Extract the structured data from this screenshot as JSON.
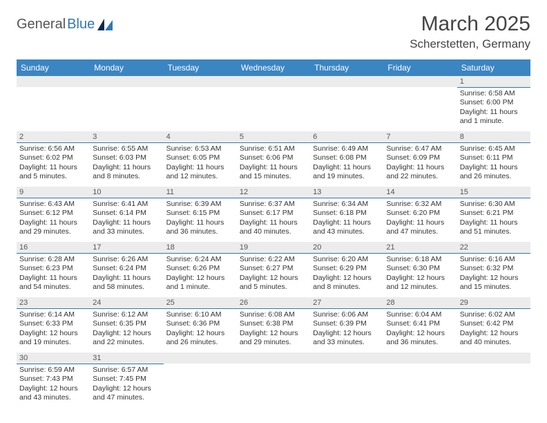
{
  "logo": {
    "text1": "General",
    "text2": "Blue"
  },
  "title": "March 2025",
  "location": "Scherstetten, Germany",
  "colors": {
    "header_bg": "#3b85c3",
    "header_text": "#ffffff",
    "daynum_bg": "#ececec",
    "border": "#2f78b7",
    "body_text": "#333333",
    "logo_gray": "#555555",
    "logo_blue": "#2f78b7"
  },
  "weekdays": [
    "Sunday",
    "Monday",
    "Tuesday",
    "Wednesday",
    "Thursday",
    "Friday",
    "Saturday"
  ],
  "weeks": [
    [
      {
        "day": "",
        "sunrise": "",
        "sunset": "",
        "daylight": ""
      },
      {
        "day": "",
        "sunrise": "",
        "sunset": "",
        "daylight": ""
      },
      {
        "day": "",
        "sunrise": "",
        "sunset": "",
        "daylight": ""
      },
      {
        "day": "",
        "sunrise": "",
        "sunset": "",
        "daylight": ""
      },
      {
        "day": "",
        "sunrise": "",
        "sunset": "",
        "daylight": ""
      },
      {
        "day": "",
        "sunrise": "",
        "sunset": "",
        "daylight": ""
      },
      {
        "day": "1",
        "sunrise": "Sunrise: 6:58 AM",
        "sunset": "Sunset: 6:00 PM",
        "daylight": "Daylight: 11 hours and 1 minute."
      }
    ],
    [
      {
        "day": "2",
        "sunrise": "Sunrise: 6:56 AM",
        "sunset": "Sunset: 6:02 PM",
        "daylight": "Daylight: 11 hours and 5 minutes."
      },
      {
        "day": "3",
        "sunrise": "Sunrise: 6:55 AM",
        "sunset": "Sunset: 6:03 PM",
        "daylight": "Daylight: 11 hours and 8 minutes."
      },
      {
        "day": "4",
        "sunrise": "Sunrise: 6:53 AM",
        "sunset": "Sunset: 6:05 PM",
        "daylight": "Daylight: 11 hours and 12 minutes."
      },
      {
        "day": "5",
        "sunrise": "Sunrise: 6:51 AM",
        "sunset": "Sunset: 6:06 PM",
        "daylight": "Daylight: 11 hours and 15 minutes."
      },
      {
        "day": "6",
        "sunrise": "Sunrise: 6:49 AM",
        "sunset": "Sunset: 6:08 PM",
        "daylight": "Daylight: 11 hours and 19 minutes."
      },
      {
        "day": "7",
        "sunrise": "Sunrise: 6:47 AM",
        "sunset": "Sunset: 6:09 PM",
        "daylight": "Daylight: 11 hours and 22 minutes."
      },
      {
        "day": "8",
        "sunrise": "Sunrise: 6:45 AM",
        "sunset": "Sunset: 6:11 PM",
        "daylight": "Daylight: 11 hours and 26 minutes."
      }
    ],
    [
      {
        "day": "9",
        "sunrise": "Sunrise: 6:43 AM",
        "sunset": "Sunset: 6:12 PM",
        "daylight": "Daylight: 11 hours and 29 minutes."
      },
      {
        "day": "10",
        "sunrise": "Sunrise: 6:41 AM",
        "sunset": "Sunset: 6:14 PM",
        "daylight": "Daylight: 11 hours and 33 minutes."
      },
      {
        "day": "11",
        "sunrise": "Sunrise: 6:39 AM",
        "sunset": "Sunset: 6:15 PM",
        "daylight": "Daylight: 11 hours and 36 minutes."
      },
      {
        "day": "12",
        "sunrise": "Sunrise: 6:37 AM",
        "sunset": "Sunset: 6:17 PM",
        "daylight": "Daylight: 11 hours and 40 minutes."
      },
      {
        "day": "13",
        "sunrise": "Sunrise: 6:34 AM",
        "sunset": "Sunset: 6:18 PM",
        "daylight": "Daylight: 11 hours and 43 minutes."
      },
      {
        "day": "14",
        "sunrise": "Sunrise: 6:32 AM",
        "sunset": "Sunset: 6:20 PM",
        "daylight": "Daylight: 11 hours and 47 minutes."
      },
      {
        "day": "15",
        "sunrise": "Sunrise: 6:30 AM",
        "sunset": "Sunset: 6:21 PM",
        "daylight": "Daylight: 11 hours and 51 minutes."
      }
    ],
    [
      {
        "day": "16",
        "sunrise": "Sunrise: 6:28 AM",
        "sunset": "Sunset: 6:23 PM",
        "daylight": "Daylight: 11 hours and 54 minutes."
      },
      {
        "day": "17",
        "sunrise": "Sunrise: 6:26 AM",
        "sunset": "Sunset: 6:24 PM",
        "daylight": "Daylight: 11 hours and 58 minutes."
      },
      {
        "day": "18",
        "sunrise": "Sunrise: 6:24 AM",
        "sunset": "Sunset: 6:26 PM",
        "daylight": "Daylight: 12 hours and 1 minute."
      },
      {
        "day": "19",
        "sunrise": "Sunrise: 6:22 AM",
        "sunset": "Sunset: 6:27 PM",
        "daylight": "Daylight: 12 hours and 5 minutes."
      },
      {
        "day": "20",
        "sunrise": "Sunrise: 6:20 AM",
        "sunset": "Sunset: 6:29 PM",
        "daylight": "Daylight: 12 hours and 8 minutes."
      },
      {
        "day": "21",
        "sunrise": "Sunrise: 6:18 AM",
        "sunset": "Sunset: 6:30 PM",
        "daylight": "Daylight: 12 hours and 12 minutes."
      },
      {
        "day": "22",
        "sunrise": "Sunrise: 6:16 AM",
        "sunset": "Sunset: 6:32 PM",
        "daylight": "Daylight: 12 hours and 15 minutes."
      }
    ],
    [
      {
        "day": "23",
        "sunrise": "Sunrise: 6:14 AM",
        "sunset": "Sunset: 6:33 PM",
        "daylight": "Daylight: 12 hours and 19 minutes."
      },
      {
        "day": "24",
        "sunrise": "Sunrise: 6:12 AM",
        "sunset": "Sunset: 6:35 PM",
        "daylight": "Daylight: 12 hours and 22 minutes."
      },
      {
        "day": "25",
        "sunrise": "Sunrise: 6:10 AM",
        "sunset": "Sunset: 6:36 PM",
        "daylight": "Daylight: 12 hours and 26 minutes."
      },
      {
        "day": "26",
        "sunrise": "Sunrise: 6:08 AM",
        "sunset": "Sunset: 6:38 PM",
        "daylight": "Daylight: 12 hours and 29 minutes."
      },
      {
        "day": "27",
        "sunrise": "Sunrise: 6:06 AM",
        "sunset": "Sunset: 6:39 PM",
        "daylight": "Daylight: 12 hours and 33 minutes."
      },
      {
        "day": "28",
        "sunrise": "Sunrise: 6:04 AM",
        "sunset": "Sunset: 6:41 PM",
        "daylight": "Daylight: 12 hours and 36 minutes."
      },
      {
        "day": "29",
        "sunrise": "Sunrise: 6:02 AM",
        "sunset": "Sunset: 6:42 PM",
        "daylight": "Daylight: 12 hours and 40 minutes."
      }
    ],
    [
      {
        "day": "30",
        "sunrise": "Sunrise: 6:59 AM",
        "sunset": "Sunset: 7:43 PM",
        "daylight": "Daylight: 12 hours and 43 minutes."
      },
      {
        "day": "31",
        "sunrise": "Sunrise: 6:57 AM",
        "sunset": "Sunset: 7:45 PM",
        "daylight": "Daylight: 12 hours and 47 minutes."
      },
      {
        "day": "",
        "sunrise": "",
        "sunset": "",
        "daylight": ""
      },
      {
        "day": "",
        "sunrise": "",
        "sunset": "",
        "daylight": ""
      },
      {
        "day": "",
        "sunrise": "",
        "sunset": "",
        "daylight": ""
      },
      {
        "day": "",
        "sunrise": "",
        "sunset": "",
        "daylight": ""
      },
      {
        "day": "",
        "sunrise": "",
        "sunset": "",
        "daylight": ""
      }
    ]
  ]
}
